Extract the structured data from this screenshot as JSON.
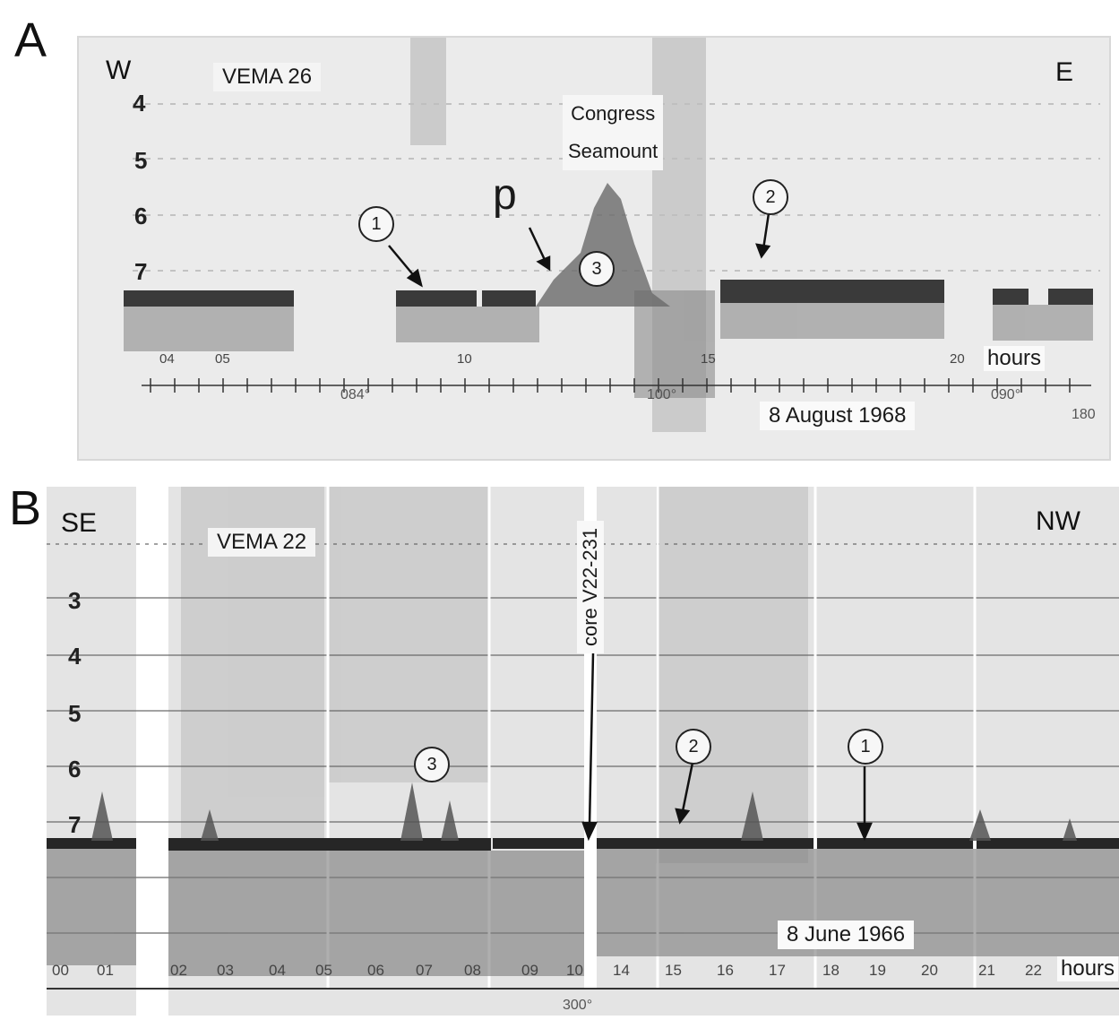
{
  "panel_a": {
    "letter": "A",
    "direction_left": "W",
    "direction_right": "E",
    "ship": "VEMA 26",
    "depth_labels": [
      "4",
      "5",
      "6",
      "7"
    ],
    "feature_name_line1": "Congress",
    "feature_name_line2": "Seamount",
    "point_label": "p",
    "callouts": [
      "1",
      "3",
      "2"
    ],
    "hour_ticks": [
      "04",
      "05",
      "10",
      "15",
      "20"
    ],
    "hours_label": "hours",
    "headings": [
      "084°",
      "100°",
      "090°",
      "180"
    ],
    "date": "8 August 1968"
  },
  "panel_b": {
    "letter": "B",
    "direction_left": "SE",
    "direction_right": "NW",
    "ship": "VEMA 22",
    "core_label": "core V22-231",
    "depth_labels": [
      "3",
      "4",
      "5",
      "6",
      "7"
    ],
    "callouts": [
      "3",
      "2",
      "1"
    ],
    "hour_ticks": [
      "00",
      "01",
      "02",
      "03",
      "04",
      "05",
      "06",
      "07",
      "08",
      "09",
      "10",
      "14",
      "15",
      "16",
      "17",
      "18",
      "19",
      "20",
      "21",
      "22"
    ],
    "hours_label": "hours",
    "heading": "300°",
    "date": "8 June 1966"
  }
}
